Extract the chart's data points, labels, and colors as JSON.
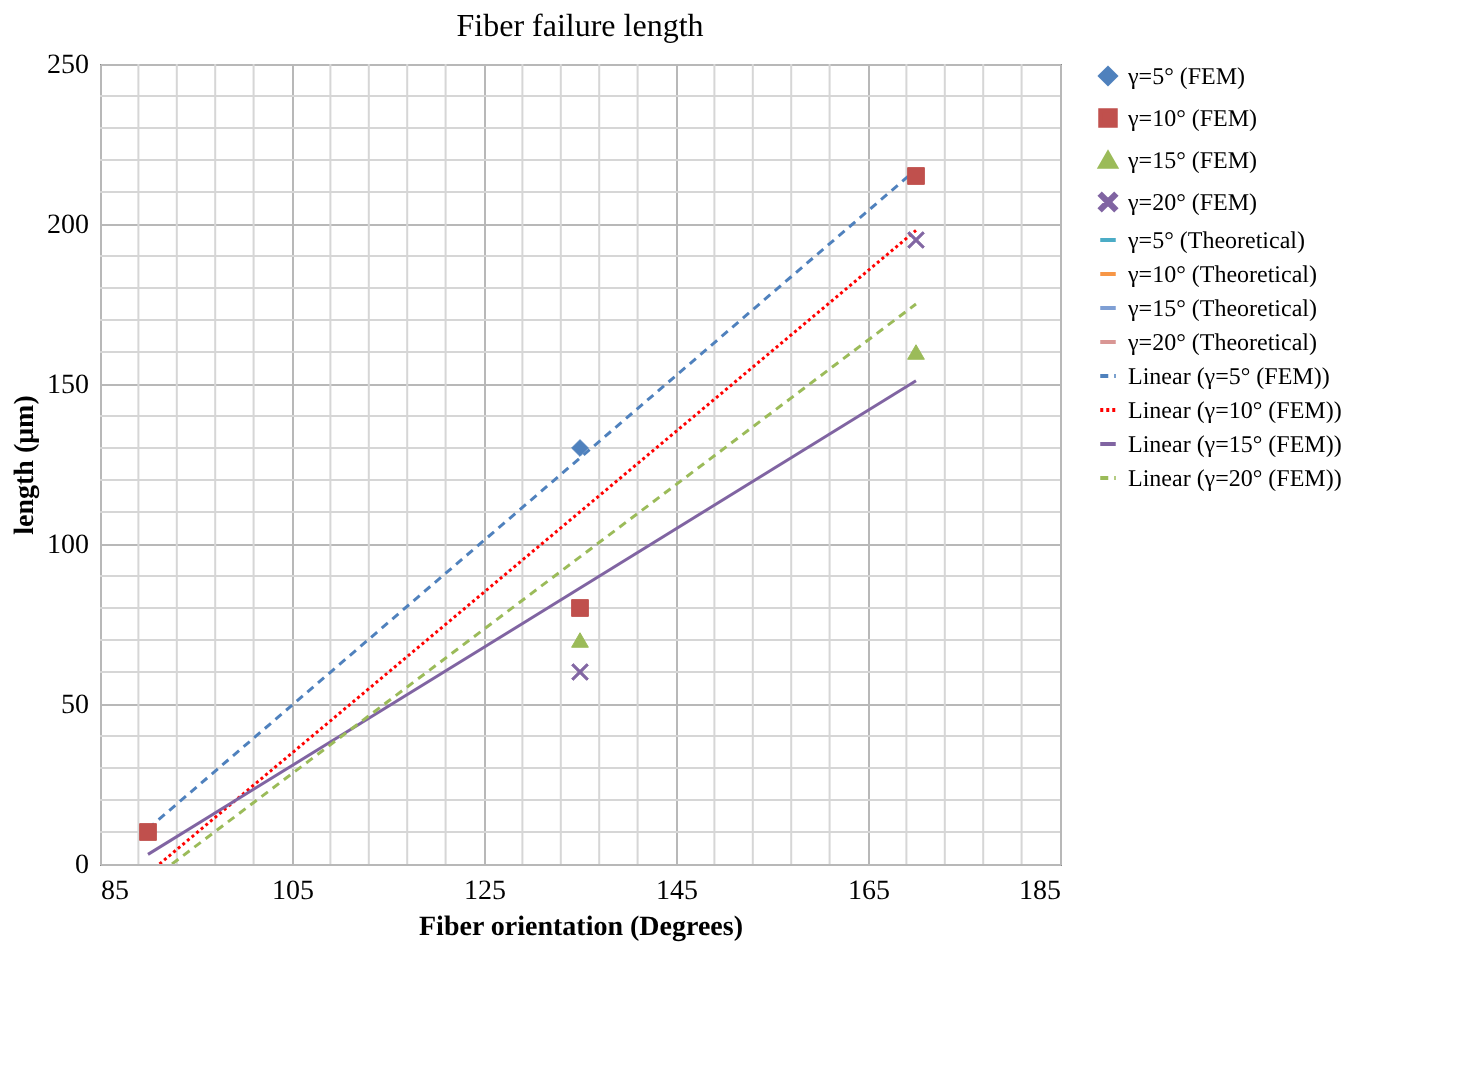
{
  "chart_data": {
    "type": "scatter",
    "title": "Fiber failure length",
    "xlabel": "Fiber orientation (Degrees)",
    "ylabel": "length (μm)",
    "x": [
      90,
      135,
      170
    ],
    "series": [
      {
        "name": "γ=5° (FEM)",
        "type": "scatter",
        "marker": "diamond",
        "color": "#4f81bd",
        "values": [
          null,
          130,
          null
        ]
      },
      {
        "name": "γ=10° (FEM)",
        "type": "scatter",
        "marker": "square",
        "color": "#c0504d",
        "values": [
          10,
          80,
          215
        ]
      },
      {
        "name": "γ=15° (FEM)",
        "type": "scatter",
        "marker": "triangle",
        "color": "#9bbb59",
        "values": [
          null,
          70,
          160
        ]
      },
      {
        "name": "γ=20° (FEM)",
        "type": "scatter",
        "marker": "cross",
        "color": "#8064a2",
        "values": [
          null,
          60,
          195
        ]
      },
      {
        "name": "γ=5° (Theoretical)",
        "type": "line",
        "line_style": "solid",
        "color": "#4bacc6",
        "values": [
          null,
          null,
          null
        ]
      },
      {
        "name": "γ=10° (Theoretical)",
        "type": "line",
        "line_style": "solid",
        "color": "#f79646",
        "values": [
          null,
          null,
          null
        ]
      },
      {
        "name": "γ=15° (Theoretical)",
        "type": "line",
        "line_style": "solid",
        "color": "#7f9fd4",
        "values": [
          null,
          null,
          null
        ]
      },
      {
        "name": "γ=20° (Theoretical)",
        "type": "line",
        "line_style": "solid",
        "color": "#d99694",
        "values": [
          null,
          null,
          null
        ]
      },
      {
        "name": "Linear (γ=5° (FEM))",
        "type": "line",
        "line_style": "dashed",
        "color": "#4f81bd",
        "x": [
          90,
          170
        ],
        "values": [
          11,
          217
        ]
      },
      {
        "name": "Linear (γ=10° (FEM))",
        "type": "line",
        "line_style": "dotted",
        "color": "#ff0000",
        "x": [
          91.2,
          170
        ],
        "values": [
          0,
          198
        ]
      },
      {
        "name": "Linear (γ=15° (FEM))",
        "type": "line",
        "line_style": "solid",
        "color": "#8064a2",
        "x": [
          90,
          170
        ],
        "values": [
          3,
          151
        ]
      },
      {
        "name": "Linear (γ=20° (FEM))",
        "type": "line",
        "line_style": "dashed",
        "color": "#9bbb59",
        "x": [
          92.5,
          170
        ],
        "values": [
          0,
          175
        ]
      }
    ],
    "xlim": [
      85,
      185
    ],
    "ylim": [
      0,
      250
    ],
    "xticks": [
      85,
      {
        "value": 89,
        "label": null
      },
      {
        "value": 93,
        "label": null
      },
      {
        "value": 97,
        "label": null
      },
      {
        "value": 101,
        "label": null
      },
      105,
      {
        "value": 109,
        "label": null
      },
      {
        "value": 113,
        "label": null
      },
      {
        "value": 117,
        "label": null
      },
      {
        "value": 121,
        "label": null
      },
      125,
      {
        "value": 129,
        "label": null
      },
      {
        "value": 133,
        "label": null
      },
      {
        "value": 137,
        "label": null
      },
      {
        "value": 141,
        "label": null
      },
      145,
      {
        "value": 149,
        "label": null
      },
      {
        "value": 153,
        "label": null
      },
      {
        "value": 157,
        "label": null
      },
      {
        "value": 161,
        "label": null
      },
      165,
      {
        "value": 169,
        "label": null
      },
      {
        "value": 173,
        "label": null
      },
      {
        "value": 177,
        "label": null
      },
      {
        "value": 181,
        "label": null
      },
      185
    ],
    "yticks": [
      0,
      {
        "value": 10,
        "label": null
      },
      {
        "value": 20,
        "label": null
      },
      {
        "value": 30,
        "label": null
      },
      {
        "value": 40,
        "label": null
      },
      50,
      {
        "value": 60,
        "label": null
      },
      {
        "value": 70,
        "label": null
      },
      {
        "value": 80,
        "label": null
      },
      {
        "value": 90,
        "label": null
      },
      100,
      {
        "value": 110,
        "label": null
      },
      {
        "value": 120,
        "label": null
      },
      {
        "value": 130,
        "label": null
      },
      {
        "value": 140,
        "label": null
      },
      150,
      {
        "value": 160,
        "label": null
      },
      {
        "value": 170,
        "label": null
      },
      {
        "value": 180,
        "label": null
      },
      {
        "value": 190,
        "label": null
      },
      200,
      {
        "value": 210,
        "label": null
      },
      {
        "value": 220,
        "label": null
      },
      {
        "value": 230,
        "label": null
      },
      {
        "value": 240,
        "label": null
      },
      250
    ],
    "grid": true,
    "legend": "right"
  }
}
